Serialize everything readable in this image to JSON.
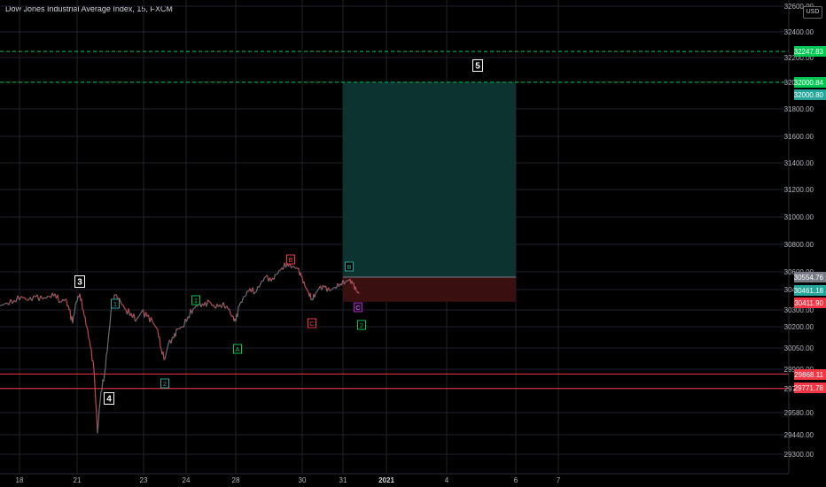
{
  "chart": {
    "title": "Dow Jones Industrial Average Index, 15, FXCM",
    "currency": "USD"
  },
  "colors": {
    "background": "#000000",
    "price_line": "#5d606b",
    "grid": "#1e222d",
    "profit_zone": "#0d3330",
    "loss_zone": "#3a0f10",
    "green_dashed": "#00c853",
    "red_line": "#f23645",
    "teal": "#26a69a"
  },
  "chart_data": {
    "type": "line",
    "y_axis": {
      "range": [
        29200,
        32700
      ],
      "ticks": [
        32600,
        32400,
        32200,
        32000,
        31800,
        31600,
        31400,
        31200,
        31000,
        30800,
        30600,
        30450,
        30300,
        30200,
        30050,
        29900,
        29770,
        29580,
        29440,
        29300
      ]
    },
    "x_axis": {
      "ticks": [
        "18",
        "21",
        "23",
        "24",
        "28",
        "30",
        "31",
        "2021",
        "4",
        "6",
        "7"
      ]
    },
    "price_labels": [
      {
        "value": "32247.83",
        "color": "#00c853"
      },
      {
        "value": "32000.84",
        "color": "#00c853"
      },
      {
        "value": "32000.80",
        "color": "#26a69a"
      },
      {
        "value": "30554.76",
        "color": "#787b86"
      },
      {
        "value": "30461.18",
        "color": "#26a69a"
      },
      {
        "value": "30411.90",
        "color": "#f23645"
      },
      {
        "value": "29868.11",
        "color": "#f23645"
      },
      {
        "value": "29771.78",
        "color": "#f23645"
      }
    ],
    "horizontal_lines": [
      {
        "price": 32247.83,
        "style": "dashed",
        "color": "#00c853"
      },
      {
        "price": 32000.84,
        "style": "dashed",
        "color": "#00c853"
      },
      {
        "price": 29868.11,
        "style": "solid",
        "color": "#f23645"
      },
      {
        "price": 29771.78,
        "style": "solid",
        "color": "#f23645"
      }
    ],
    "position": {
      "entry": 30554.76,
      "target": 32000.84,
      "stop": 30411.9
    },
    "wave_labels": [
      {
        "text": "3",
        "style": "box-white"
      },
      {
        "text": "4",
        "style": "box-white"
      },
      {
        "text": "5",
        "style": "box-white"
      },
      {
        "text": "1",
        "style": "teal"
      },
      {
        "text": "2",
        "style": "teal"
      },
      {
        "text": "1",
        "style": "green"
      },
      {
        "text": "A",
        "style": "green"
      },
      {
        "text": "B",
        "style": "red"
      },
      {
        "text": "C",
        "style": "red"
      },
      {
        "text": "B",
        "style": "teal"
      },
      {
        "text": "C",
        "style": "purple"
      },
      {
        "text": "2",
        "style": "green"
      }
    ],
    "price_series": [
      [
        0,
        30330
      ],
      [
        8,
        30350
      ],
      [
        16,
        30370
      ],
      [
        24,
        30400
      ],
      [
        32,
        30370
      ],
      [
        40,
        30395
      ],
      [
        48,
        30380
      ],
      [
        56,
        30400
      ],
      [
        62,
        30420
      ],
      [
        68,
        30360
      ],
      [
        74,
        30380
      ],
      [
        78,
        30300
      ],
      [
        82,
        30220
      ],
      [
        86,
        30360
      ],
      [
        90,
        30420
      ],
      [
        94,
        30300
      ],
      [
        98,
        30200
      ],
      [
        102,
        30060
      ],
      [
        106,
        29900
      ],
      [
        110,
        29450
      ],
      [
        114,
        29750
      ],
      [
        118,
        29870
      ],
      [
        122,
        30100
      ],
      [
        126,
        30330
      ],
      [
        130,
        30410
      ],
      [
        136,
        30360
      ],
      [
        142,
        30300
      ],
      [
        148,
        30280
      ],
      [
        154,
        30240
      ],
      [
        160,
        30290
      ],
      [
        166,
        30260
      ],
      [
        172,
        30230
      ],
      [
        178,
        30180
      ],
      [
        182,
        30040
      ],
      [
        186,
        29970
      ],
      [
        190,
        30080
      ],
      [
        196,
        30120
      ],
      [
        200,
        30180
      ],
      [
        206,
        30200
      ],
      [
        212,
        30260
      ],
      [
        218,
        30310
      ],
      [
        224,
        30340
      ],
      [
        230,
        30330
      ],
      [
        236,
        30360
      ],
      [
        242,
        30320
      ],
      [
        248,
        30340
      ],
      [
        256,
        30330
      ],
      [
        262,
        30260
      ],
      [
        266,
        30230
      ],
      [
        270,
        30330
      ],
      [
        276,
        30400
      ],
      [
        282,
        30460
      ],
      [
        288,
        30430
      ],
      [
        294,
        30500
      ],
      [
        300,
        30560
      ],
      [
        306,
        30520
      ],
      [
        312,
        30580
      ],
      [
        318,
        30630
      ],
      [
        324,
        30660
      ],
      [
        330,
        30640
      ],
      [
        336,
        30620
      ],
      [
        340,
        30560
      ],
      [
        344,
        30480
      ],
      [
        348,
        30430
      ],
      [
        352,
        30380
      ],
      [
        356,
        30420
      ],
      [
        360,
        30460
      ],
      [
        366,
        30470
      ],
      [
        372,
        30440
      ],
      [
        378,
        30470
      ],
      [
        384,
        30500
      ],
      [
        390,
        30520
      ],
      [
        394,
        30530
      ],
      [
        398,
        30500
      ],
      [
        402,
        30440
      ],
      [
        405,
        30420
      ]
    ]
  }
}
